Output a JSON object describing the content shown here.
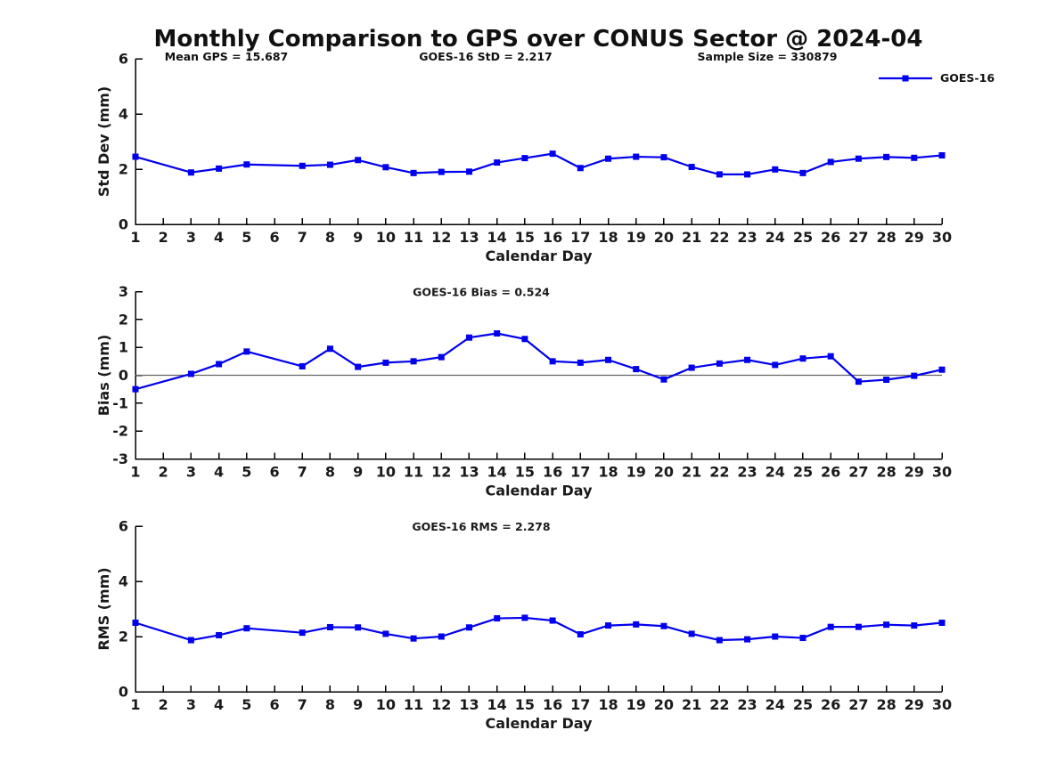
{
  "header": {
    "title": "Monthly Comparison to GPS over CONUS Sector @ 2024-04",
    "annotations": {
      "mean_gps": "Mean GPS = 15.687",
      "goes16_std": "GOES-16 StD = 2.217",
      "sample_size": "Sample Size = 330879"
    }
  },
  "legend": {
    "label": "GOES-16",
    "color": "#0000ee",
    "position": "top-right"
  },
  "chart_data": [
    {
      "type": "line",
      "id": "stddev",
      "title": "",
      "ylabel": "Std Dev (mm)",
      "xlabel": "Calendar Day",
      "ylim": [
        0,
        6
      ],
      "yticks": [
        0,
        2,
        4,
        6
      ],
      "xlim": [
        1,
        30
      ],
      "xticks": [
        1,
        2,
        3,
        4,
        5,
        6,
        7,
        8,
        9,
        10,
        11,
        12,
        13,
        14,
        15,
        16,
        17,
        18,
        19,
        20,
        21,
        22,
        23,
        24,
        25,
        26,
        27,
        28,
        29,
        30
      ],
      "grid": false,
      "zero_line": false,
      "annotation": null,
      "series": [
        {
          "name": "GOES-16",
          "color": "#0000ee",
          "marker": "square",
          "x": [
            1,
            3,
            4,
            5,
            7,
            8,
            9,
            10,
            11,
            12,
            13,
            14,
            15,
            16,
            17,
            18,
            19,
            20,
            21,
            22,
            23,
            24,
            25,
            26,
            27,
            28,
            29,
            30
          ],
          "y": [
            2.45,
            1.88,
            2.02,
            2.17,
            2.12,
            2.16,
            2.33,
            2.07,
            1.86,
            1.9,
            1.91,
            2.24,
            2.4,
            2.56,
            2.04,
            2.38,
            2.45,
            2.43,
            2.08,
            1.81,
            1.81,
            1.99,
            1.86,
            2.26,
            2.38,
            2.44,
            2.41,
            2.5
          ]
        }
      ]
    },
    {
      "type": "line",
      "id": "bias",
      "title": "GOES-16 Bias = 0.524",
      "ylabel": "Bias (mm)",
      "xlabel": "Calendar Day",
      "ylim": [
        -3,
        3
      ],
      "yticks": [
        3,
        2,
        1,
        0,
        -1,
        -2,
        -3
      ],
      "xlim": [
        1,
        30
      ],
      "xticks": [
        1,
        2,
        3,
        4,
        5,
        6,
        7,
        8,
        9,
        10,
        11,
        12,
        13,
        14,
        15,
        16,
        17,
        18,
        19,
        20,
        21,
        22,
        23,
        24,
        25,
        26,
        27,
        28,
        29,
        30
      ],
      "grid": false,
      "zero_line": true,
      "zero_line_color": "#666666",
      "annotation": "GOES-16 Bias = 0.524",
      "series": [
        {
          "name": "GOES-16",
          "color": "#0000ee",
          "marker": "square",
          "x": [
            1,
            3,
            4,
            5,
            7,
            8,
            9,
            10,
            11,
            12,
            13,
            14,
            15,
            16,
            17,
            18,
            19,
            20,
            21,
            22,
            23,
            24,
            25,
            26,
            27,
            28,
            29,
            30
          ],
          "y": [
            -0.5,
            0.05,
            0.4,
            0.85,
            0.32,
            0.95,
            0.3,
            0.45,
            0.5,
            0.65,
            1.35,
            1.5,
            1.3,
            0.5,
            0.45,
            0.55,
            0.22,
            -0.15,
            0.27,
            0.42,
            0.55,
            0.37,
            0.6,
            0.68,
            -0.23,
            -0.16,
            -0.02,
            0.2
          ]
        }
      ]
    },
    {
      "type": "line",
      "id": "rms",
      "title": "GOES-16 RMS = 2.278",
      "ylabel": "RMS (mm)",
      "xlabel": "Calendar Day",
      "ylim": [
        0,
        6
      ],
      "yticks": [
        0,
        2,
        4,
        6
      ],
      "xlim": [
        1,
        30
      ],
      "xticks": [
        1,
        2,
        3,
        4,
        5,
        6,
        7,
        8,
        9,
        10,
        11,
        12,
        13,
        14,
        15,
        16,
        17,
        18,
        19,
        20,
        21,
        22,
        23,
        24,
        25,
        26,
        27,
        28,
        29,
        30
      ],
      "grid": false,
      "zero_line": false,
      "annotation": "GOES-16 RMS = 2.278",
      "series": [
        {
          "name": "GOES-16",
          "color": "#0000ee",
          "marker": "square",
          "x": [
            1,
            3,
            4,
            5,
            7,
            8,
            9,
            10,
            11,
            12,
            13,
            14,
            15,
            16,
            17,
            18,
            19,
            20,
            21,
            22,
            23,
            24,
            25,
            26,
            27,
            28,
            29,
            30
          ],
          "y": [
            2.5,
            1.87,
            2.05,
            2.3,
            2.14,
            2.34,
            2.33,
            2.1,
            1.93,
            2.0,
            2.33,
            2.66,
            2.68,
            2.58,
            2.08,
            2.4,
            2.44,
            2.38,
            2.1,
            1.87,
            1.9,
            2.0,
            1.95,
            2.35,
            2.35,
            2.43,
            2.4,
            2.5
          ]
        }
      ]
    }
  ]
}
